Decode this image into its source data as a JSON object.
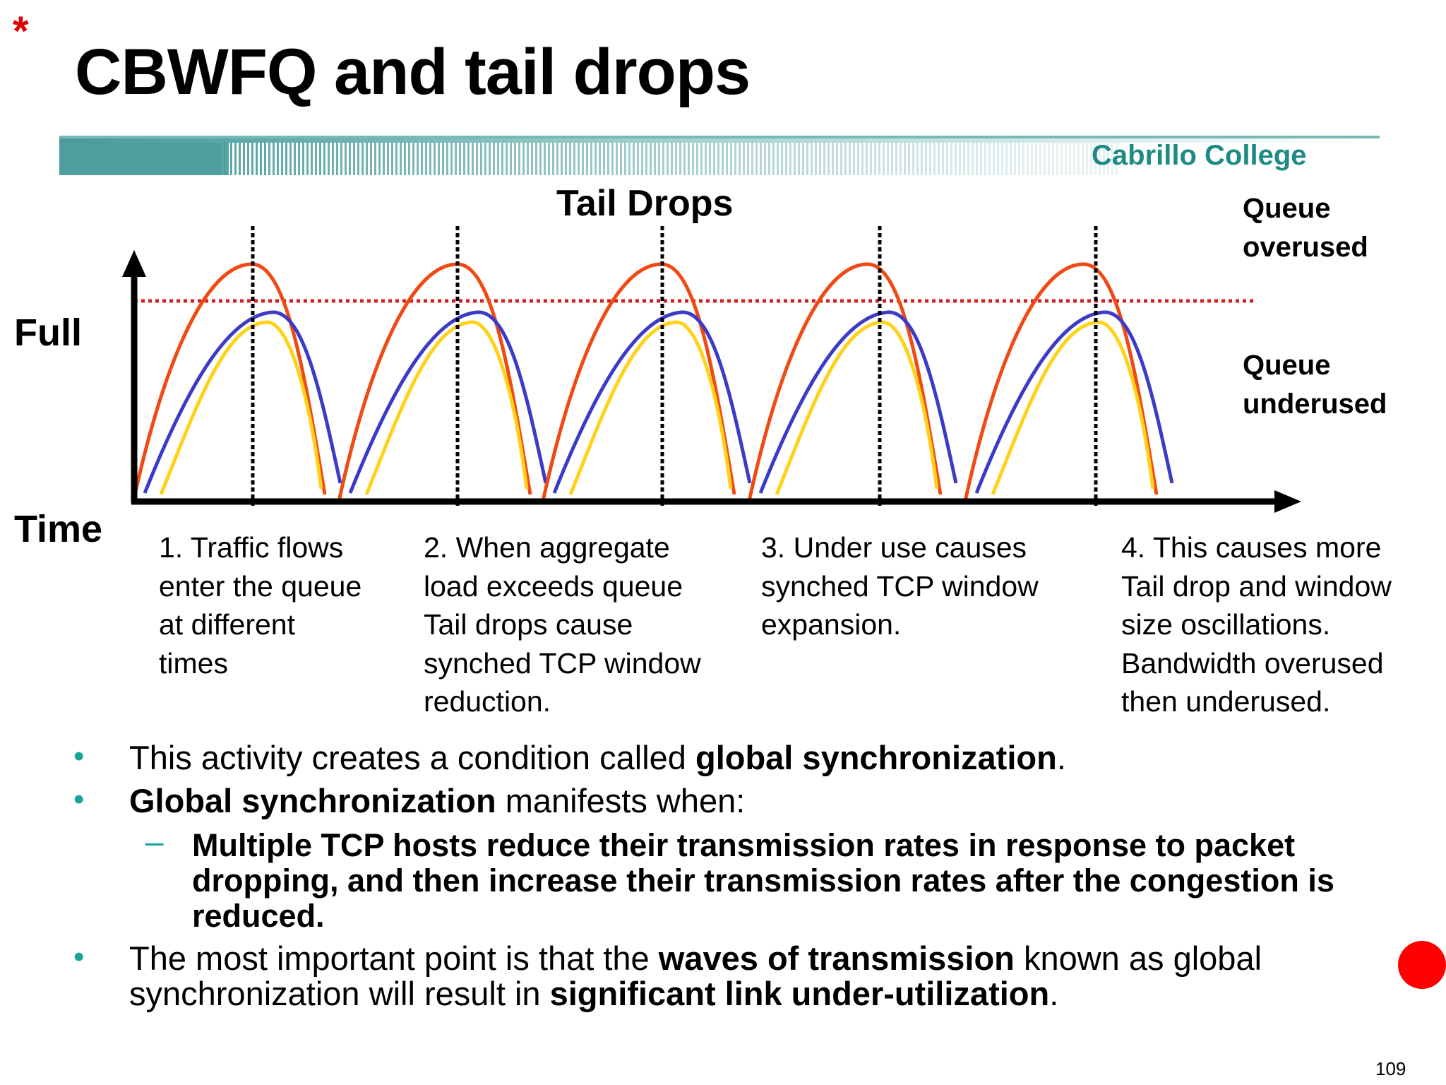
{
  "slide": {
    "marker": "*",
    "title": "CBWFQ and tail drops",
    "banner_text": "Cabrillo College",
    "page_number": "109"
  },
  "diagram": {
    "title": "Tail Drops",
    "queue_overused": [
      "Queue",
      "overused"
    ],
    "queue_underused": [
      "Queue",
      "underused"
    ],
    "y_label": "Full",
    "x_label": "Time",
    "colors": {
      "flow_red": "#f04a14",
      "flow_blue": "#3b3bc8",
      "flow_yellow": "#ffd21a",
      "threshold": "#d42020",
      "accent": "#1aa39a"
    },
    "steps": [
      [
        "1. Traffic flows",
        "enter the queue",
        "at different",
        "times"
      ],
      [
        "2. When aggregate",
        "load exceeds queue",
        "Tail drops cause",
        "synched TCP window",
        "reduction."
      ],
      [
        "3. Under use causes",
        "synched TCP window",
        "expansion."
      ],
      [
        "4. This causes more",
        "Tail drop and window",
        "size oscillations.",
        "Bandwidth overused",
        "then underused."
      ]
    ]
  },
  "bullets": {
    "b1_pre": "This activity creates a condition called ",
    "b1_bold": "global synchronization",
    "b1_post": ".",
    "b2_bold": "Global synchronization",
    "b2_post": " manifests when:",
    "sub_dash": "–",
    "sub1": "Multiple TCP hosts reduce their transmission rates in response to packet dropping, and then increase their transmission rates after the congestion is reduced.",
    "b3_pre": "The most important point is that the ",
    "b3_bold1": "waves of transmission",
    "b3_mid": " known as global synchronization will result in ",
    "b3_bold2": "significant link under-utilization",
    "b3_post": "."
  }
}
